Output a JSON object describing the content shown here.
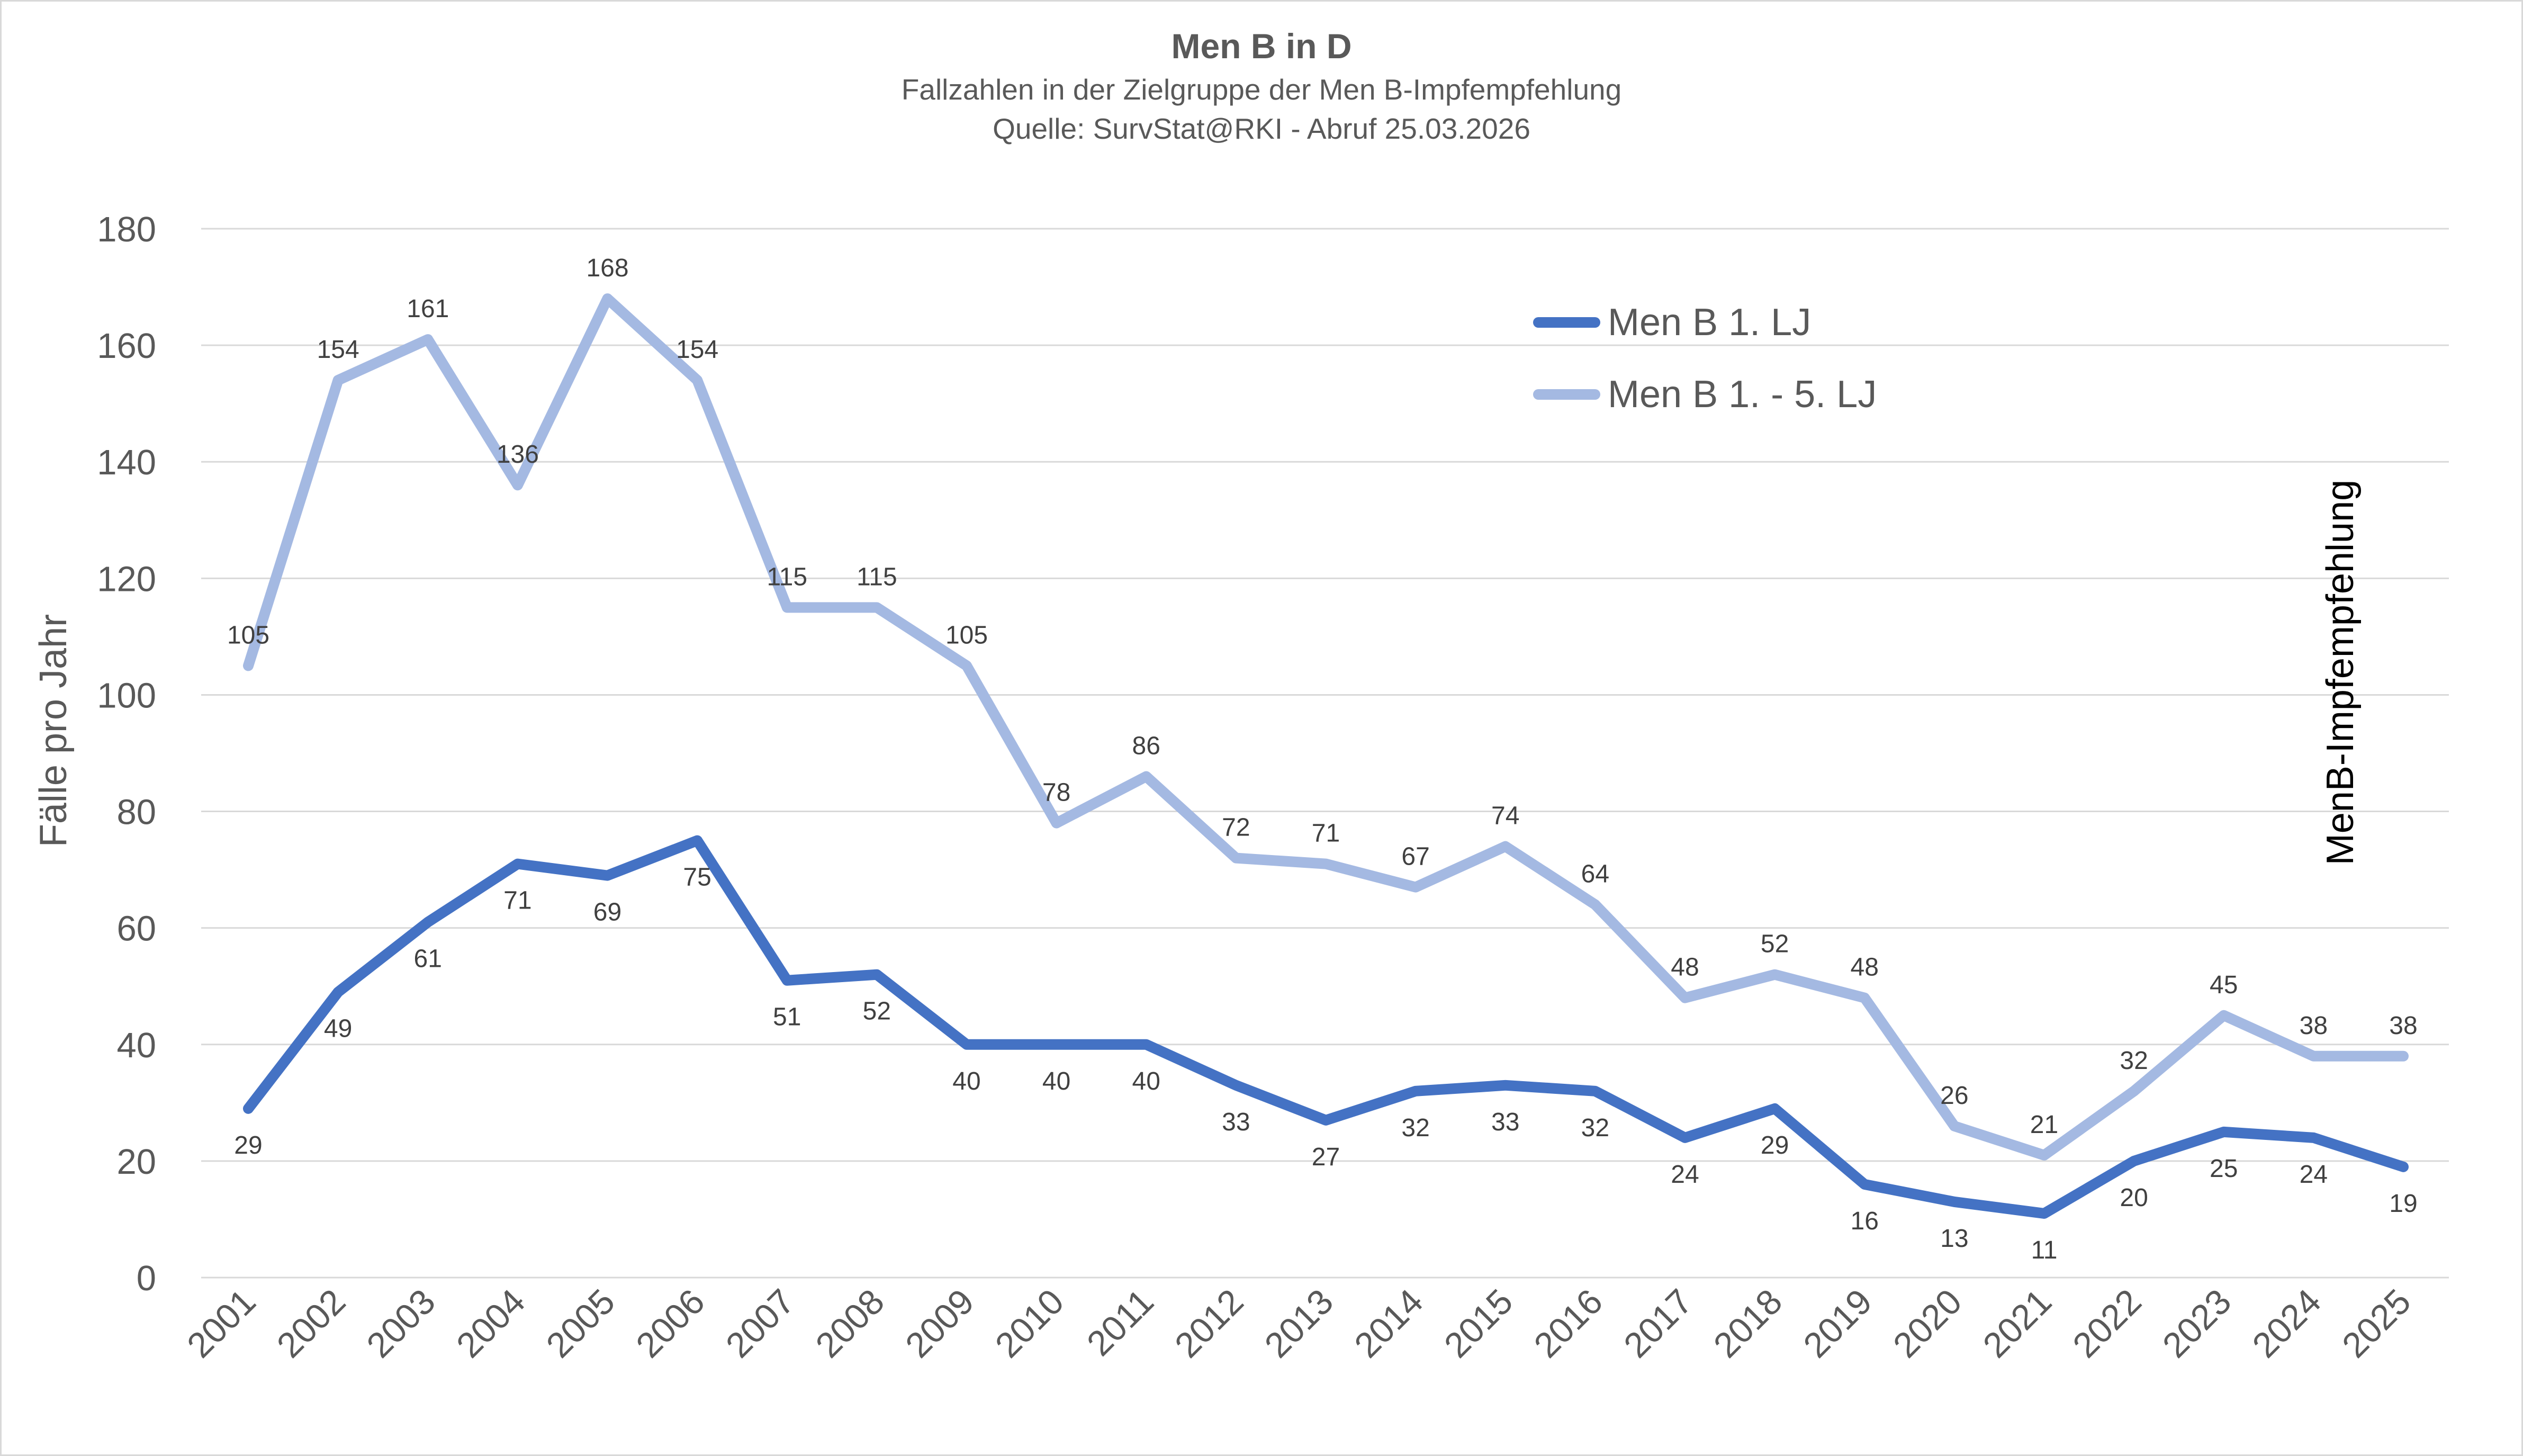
{
  "chart_data": {
    "type": "line",
    "title": "Men B in D",
    "subtitle": [
      "Fallzahlen in der Zielgruppe der Men B-Impfempfehlung",
      "Quelle: SurvStat@RKI - Abruf 25.03.2026"
    ],
    "xlabel": "",
    "ylabel": "Fälle pro Jahr",
    "ylim": [
      0,
      180
    ],
    "yticks": [
      0,
      20,
      40,
      60,
      80,
      100,
      120,
      140,
      160,
      180
    ],
    "grid": true,
    "legend_position": "top-right",
    "categories": [
      "2001",
      "2002",
      "2003",
      "2004",
      "2005",
      "2006",
      "2007",
      "2008",
      "2009",
      "2010",
      "2011",
      "2012",
      "2013",
      "2014",
      "2015",
      "2016",
      "2017",
      "2018",
      "2019",
      "2020",
      "2021",
      "2022",
      "2023",
      "2024",
      "2025"
    ],
    "series": [
      {
        "name": "Men B 1. LJ",
        "color": "#4472C4",
        "label_position": "below",
        "values": [
          29,
          49,
          61,
          71,
          69,
          75,
          51,
          52,
          40,
          40,
          40,
          33,
          27,
          32,
          33,
          32,
          24,
          29,
          16,
          13,
          11,
          20,
          25,
          24,
          19
        ]
      },
      {
        "name": "Men B 1. - 5. LJ",
        "color": "#A4B9E2",
        "label_position": "above",
        "values": [
          105,
          154,
          161,
          136,
          168,
          154,
          115,
          115,
          105,
          78,
          86,
          72,
          71,
          67,
          74,
          64,
          48,
          52,
          48,
          26,
          21,
          32,
          45,
          38,
          38
        ]
      }
    ],
    "annotations": [
      "MenB-Impfempfehlung"
    ]
  }
}
